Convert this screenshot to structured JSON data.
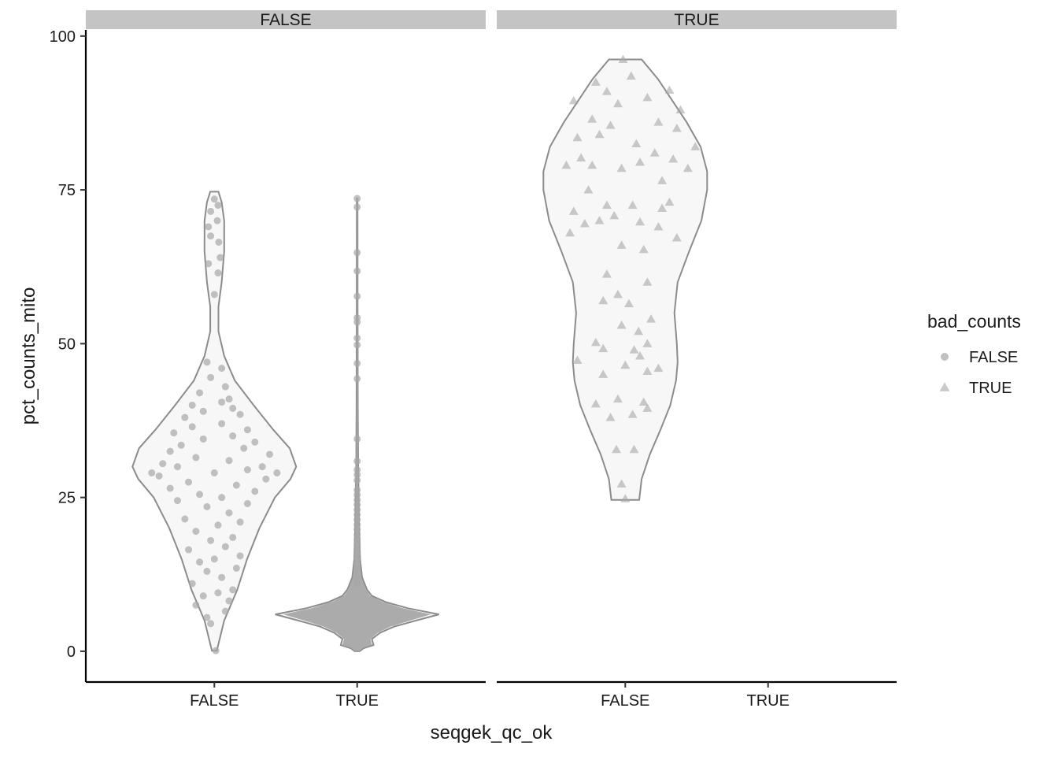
{
  "chart_data": {
    "type": "violin",
    "xlabel": "seqgek_qc_ok",
    "ylabel": "pct_counts_mito",
    "ylim": [
      -5,
      101
    ],
    "yticks": [
      0,
      25,
      50,
      75,
      100
    ],
    "grid": false,
    "legend": {
      "title": "bad_counts",
      "position": "right",
      "entries": [
        {
          "label": "FALSE",
          "shape": "circle"
        },
        {
          "label": "TRUE",
          "shape": "triangle"
        }
      ]
    },
    "colors": {
      "point": "#a6a6a6",
      "violin_fill": "#f7f7f7",
      "violin_stroke": "#8c8c8c",
      "strip": "#c4c4c4"
    },
    "facets": [
      {
        "label": "FALSE",
        "categories": [
          "FALSE",
          "TRUE"
        ],
        "violins": [
          {
            "category": "FALSE",
            "bad_counts": "FALSE",
            "y_min": 0.1,
            "y_max": 74.7,
            "profile": [
              [
                0.1,
                0.03
              ],
              [
                5,
                0.12
              ],
              [
                10,
                0.28
              ],
              [
                15,
                0.4
              ],
              [
                20,
                0.55
              ],
              [
                25,
                0.74
              ],
              [
                28,
                0.93
              ],
              [
                30,
                1.0
              ],
              [
                33,
                0.92
              ],
              [
                36,
                0.72
              ],
              [
                40,
                0.48
              ],
              [
                44,
                0.25
              ],
              [
                48,
                0.12
              ],
              [
                52,
                0.05
              ],
              [
                56,
                0.05
              ],
              [
                60,
                0.09
              ],
              [
                65,
                0.12
              ],
              [
                70,
                0.12
              ],
              [
                73,
                0.09
              ],
              [
                74.7,
                0.05
              ]
            ],
            "points": [
              [
                0.1,
                0.02
              ],
              [
                4.5,
                -0.05
              ],
              [
                5.5,
                -0.1
              ],
              [
                6.5,
                0.15
              ],
              [
                7.5,
                -0.25
              ],
              [
                8.2,
                0.2
              ],
              [
                9.0,
                -0.15
              ],
              [
                9.5,
                0.05
              ],
              [
                10.0,
                0.25
              ],
              [
                11.0,
                -0.3
              ],
              [
                12.0,
                0.1
              ],
              [
                13.0,
                -0.1
              ],
              [
                13.5,
                0.3
              ],
              [
                14.5,
                -0.2
              ],
              [
                15.0,
                0.0
              ],
              [
                15.5,
                0.35
              ],
              [
                16.5,
                -0.35
              ],
              [
                17.0,
                0.15
              ],
              [
                18.0,
                -0.05
              ],
              [
                18.5,
                0.25
              ],
              [
                19.5,
                -0.25
              ],
              [
                20.5,
                0.05
              ],
              [
                21.0,
                0.35
              ],
              [
                21.5,
                -0.4
              ],
              [
                22.5,
                0.2
              ],
              [
                23.5,
                -0.1
              ],
              [
                24.0,
                0.45
              ],
              [
                24.5,
                -0.5
              ],
              [
                25.0,
                0.1
              ],
              [
                25.5,
                -0.2
              ],
              [
                26.0,
                0.55
              ],
              [
                26.5,
                -0.6
              ],
              [
                27.0,
                0.3
              ],
              [
                27.5,
                -0.35
              ],
              [
                28.0,
                0.7
              ],
              [
                28.5,
                -0.75
              ],
              [
                29.0,
                0.0
              ],
              [
                29.0,
                0.85
              ],
              [
                29.0,
                -0.85
              ],
              [
                29.5,
                0.45
              ],
              [
                30.0,
                -0.5
              ],
              [
                30.0,
                0.65
              ],
              [
                30.5,
                -0.7
              ],
              [
                31.0,
                0.2
              ],
              [
                31.5,
                -0.25
              ],
              [
                32.0,
                0.75
              ],
              [
                32.5,
                -0.6
              ],
              [
                33.0,
                0.4
              ],
              [
                33.5,
                -0.45
              ],
              [
                34.0,
                0.55
              ],
              [
                34.5,
                -0.15
              ],
              [
                35.0,
                0.25
              ],
              [
                35.5,
                -0.55
              ],
              [
                36.0,
                0.45
              ],
              [
                36.5,
                -0.3
              ],
              [
                37.0,
                0.1
              ],
              [
                38.0,
                -0.4
              ],
              [
                38.5,
                0.35
              ],
              [
                39.0,
                -0.15
              ],
              [
                39.5,
                0.25
              ],
              [
                40.0,
                -0.3
              ],
              [
                40.5,
                0.1
              ],
              [
                41.0,
                0.2
              ],
              [
                42.0,
                -0.2
              ],
              [
                43.0,
                0.15
              ],
              [
                44.5,
                -0.05
              ],
              [
                46.0,
                0.1
              ],
              [
                47.0,
                -0.1
              ],
              [
                58.0,
                0.0
              ],
              [
                61.5,
                0.05
              ],
              [
                63.0,
                -0.08
              ],
              [
                64.0,
                0.08
              ],
              [
                66.5,
                0.06
              ],
              [
                67.5,
                -0.05
              ],
              [
                69.0,
                -0.08
              ],
              [
                70.0,
                0.04
              ],
              [
                71.5,
                -0.05
              ],
              [
                72.5,
                0.05
              ],
              [
                73.5,
                0.0
              ]
            ]
          },
          {
            "category": "TRUE",
            "bad_counts": "FALSE",
            "y_min": 0.0,
            "y_max": 73.6,
            "profile": [
              [
                0,
                0.03
              ],
              [
                0.5,
                0.08
              ],
              [
                1,
                0.2
              ],
              [
                2,
                0.18
              ],
              [
                3,
                0.28
              ],
              [
                4,
                0.45
              ],
              [
                5,
                0.72
              ],
              [
                6,
                1.0
              ],
              [
                7,
                0.62
              ],
              [
                8,
                0.35
              ],
              [
                9,
                0.18
              ],
              [
                10,
                0.12
              ],
              [
                12,
                0.06
              ],
              [
                15,
                0.035
              ],
              [
                20,
                0.025
              ],
              [
                25,
                0.018
              ],
              [
                30,
                0.012
              ],
              [
                40,
                0.008
              ],
              [
                55,
                0.006
              ],
              [
                73.6,
                0.005
              ]
            ],
            "points": [
              [
                73.6,
                0
              ],
              [
                72.2,
                0
              ],
              [
                64.8,
                0
              ],
              [
                61.8,
                0
              ],
              [
                57.7,
                0
              ],
              [
                54.2,
                0
              ],
              [
                53.5,
                0
              ],
              [
                50.9,
                0
              ],
              [
                49.8,
                0
              ],
              [
                46.8,
                0
              ],
              [
                44.3,
                0
              ],
              [
                34.5,
                0
              ],
              [
                30.9,
                0
              ],
              [
                29.5,
                0
              ],
              [
                28.7,
                0
              ],
              [
                27.8,
                0
              ],
              [
                26.2,
                0
              ],
              [
                25.4,
                0
              ],
              [
                24.6,
                0
              ],
              [
                23.8,
                0
              ],
              [
                23.0,
                0
              ],
              [
                22.2,
                0
              ],
              [
                21.4,
                0
              ],
              [
                20.6,
                0
              ],
              [
                19.8,
                0
              ],
              [
                19.0,
                0
              ],
              [
                18.2,
                0
              ],
              [
                17.4,
                0
              ],
              [
                16.6,
                0
              ],
              [
                15.8,
                0
              ],
              [
                15.0,
                0
              ],
              [
                14.2,
                0
              ],
              [
                13.4,
                0
              ],
              [
                12.6,
                0
              ],
              [
                11.8,
                0
              ],
              [
                11.0,
                0
              ]
            ],
            "dense_fill": true
          }
        ]
      },
      {
        "label": "TRUE",
        "categories": [
          "FALSE",
          "TRUE"
        ],
        "violins": [
          {
            "category": "FALSE",
            "bad_counts": "TRUE",
            "y_min": 24.6,
            "y_max": 96.2,
            "profile": [
              [
                24.6,
                0.17
              ],
              [
                28,
                0.2
              ],
              [
                32,
                0.3
              ],
              [
                36,
                0.43
              ],
              [
                40,
                0.55
              ],
              [
                44,
                0.62
              ],
              [
                47,
                0.64
              ],
              [
                50,
                0.63
              ],
              [
                55,
                0.6
              ],
              [
                60,
                0.64
              ],
              [
                65,
                0.78
              ],
              [
                70,
                0.93
              ],
              [
                75,
                1.0
              ],
              [
                78,
                1.0
              ],
              [
                82,
                0.92
              ],
              [
                86,
                0.75
              ],
              [
                90,
                0.55
              ],
              [
                93,
                0.4
              ],
              [
                96.2,
                0.2
              ]
            ],
            "points": [
              [
                24.8,
                0.0
              ],
              [
                27.2,
                -0.05
              ],
              [
                32.8,
                -0.12
              ],
              [
                32.8,
                0.12
              ],
              [
                38.0,
                -0.2
              ],
              [
                38.5,
                0.1
              ],
              [
                39.5,
                0.3
              ],
              [
                40.2,
                -0.4
              ],
              [
                41.0,
                -0.1
              ],
              [
                40.5,
                0.25
              ],
              [
                45.0,
                -0.3
              ],
              [
                45.5,
                0.3
              ],
              [
                46.0,
                0.45
              ],
              [
                46.5,
                0.0
              ],
              [
                47.3,
                -0.65
              ],
              [
                48.0,
                0.2
              ],
              [
                49.2,
                -0.3
              ],
              [
                49.0,
                0.12
              ],
              [
                50.2,
                -0.4
              ],
              [
                50.0,
                0.3
              ],
              [
                52.0,
                0.18
              ],
              [
                53.0,
                -0.05
              ],
              [
                54.0,
                0.35
              ],
              [
                56.5,
                0.05
              ],
              [
                57.0,
                -0.3
              ],
              [
                58.0,
                -0.1
              ],
              [
                60.0,
                0.3
              ],
              [
                61.3,
                -0.25
              ],
              [
                65.3,
                0.25
              ],
              [
                66.0,
                -0.05
              ],
              [
                67.2,
                0.7
              ],
              [
                68.0,
                -0.75
              ],
              [
                69.0,
                0.45
              ],
              [
                69.5,
                -0.55
              ],
              [
                69.8,
                0.2
              ],
              [
                70.0,
                -0.35
              ],
              [
                70.8,
                -0.15
              ],
              [
                71.5,
                -0.7
              ],
              [
                72.0,
                0.5
              ],
              [
                72.5,
                0.1
              ],
              [
                72.5,
                -0.25
              ],
              [
                73.0,
                0.6
              ],
              [
                75.0,
                -0.5
              ],
              [
                76.5,
                0.5
              ],
              [
                78.5,
                0.85
              ],
              [
                78.5,
                -0.05
              ],
              [
                79.0,
                -0.45
              ],
              [
                79.5,
                0.2
              ],
              [
                79.0,
                -0.8
              ],
              [
                80.0,
                0.65
              ],
              [
                80.2,
                -0.6
              ],
              [
                81.0,
                0.4
              ],
              [
                82.0,
                0.95
              ],
              [
                82.5,
                0.15
              ],
              [
                83.5,
                -0.65
              ],
              [
                84.0,
                -0.35
              ],
              [
                85.0,
                0.7
              ],
              [
                85.5,
                -0.2
              ],
              [
                86.0,
                0.45
              ],
              [
                86.5,
                -0.45
              ],
              [
                88.0,
                0.75
              ],
              [
                89.0,
                -0.1
              ],
              [
                89.5,
                -0.7
              ],
              [
                90.0,
                0.3
              ],
              [
                91.0,
                -0.25
              ],
              [
                91.2,
                0.6
              ],
              [
                92.5,
                -0.4
              ],
              [
                93.5,
                0.08
              ],
              [
                96.2,
                -0.03
              ]
            ]
          }
        ]
      }
    ]
  }
}
